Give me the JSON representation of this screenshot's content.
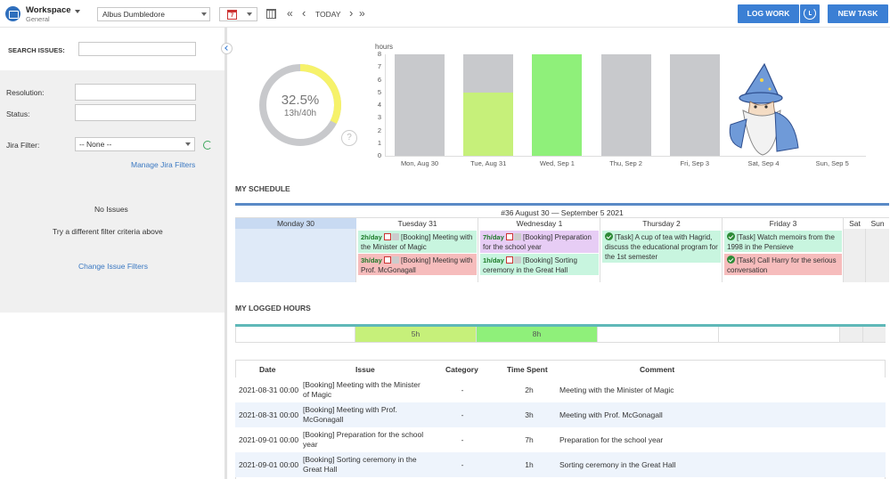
{
  "workspace": {
    "title": "Workspace",
    "subtitle": "General"
  },
  "user_select": {
    "value": "Albus Dumbledore"
  },
  "calendar": {
    "day_number": "7"
  },
  "nav": {
    "first": "«",
    "prev": "‹",
    "today": "TODAY",
    "next": "›",
    "last": "»"
  },
  "buttons": {
    "log_work": "LOG WORK",
    "new_task": "NEW TASK"
  },
  "sidebar": {
    "search_label": "SEARCH ISSUES:",
    "resolution_label": "Resolution:",
    "status_label": "Status:",
    "jira_filter_label": "Jira Filter:",
    "jira_filter_value": "-- None --",
    "manage_filters": "Manage Jira Filters",
    "no_issues": "No Issues",
    "try_different": "Try a different filter criteria above",
    "change_filters": "Change Issue Filters"
  },
  "donut": {
    "percent": "32.5%",
    "hours": "13h/40h",
    "fill_fraction": 0.325,
    "help": "?"
  },
  "chart_data": {
    "type": "bar",
    "ylabel": "hours",
    "ylim": [
      0,
      8
    ],
    "yticks": [
      "8",
      "7",
      "6",
      "5",
      "4",
      "3",
      "2",
      "1",
      "0"
    ],
    "categories": [
      "Mon, Aug 30",
      "Tue, Aug 31",
      "Wed, Sep 1",
      "Thu, Sep 2",
      "Fri, Sep 3",
      "Sat, Sep 4",
      "Sun, Sep 5"
    ],
    "capacity": [
      8,
      8,
      8,
      8,
      8,
      0,
      0
    ],
    "logged": [
      0,
      5,
      8,
      0,
      0,
      0,
      0
    ],
    "colors": {
      "capacity": "#c8c9cc",
      "logged": "#c6f07a",
      "full": "#8ff07a"
    }
  },
  "schedule": {
    "heading": "MY SCHEDULE",
    "week_title": "#36 August 30 — September 5 2021",
    "days": [
      "Monday 30",
      "Tuesday 31",
      "Wednesday 1",
      "Thursday 2",
      "Friday 3",
      "Sat",
      "Sun"
    ],
    "tuesday": [
      {
        "hours": "2h/day",
        "text": "[Booking] Meeting with the Minister of Magic"
      },
      {
        "hours": "3h/day",
        "text": "[Booking] Meeting with Prof. McGonagall"
      }
    ],
    "wednesday": [
      {
        "hours": "7h/day",
        "text": "[Booking] Preparation for the school year"
      },
      {
        "hours": "1h/day",
        "text": "[Booking] Sorting ceremony in the Great Hall"
      }
    ],
    "thursday": [
      {
        "text": "[Task] A cup of tea with Hagrid, discuss the educational program for the 1st semester"
      }
    ],
    "friday": [
      {
        "text": "[Task] Watch memoirs from the 1998 in the Pensieve"
      },
      {
        "text": "[Task] Call Harry for the serious conversation"
      }
    ]
  },
  "logged": {
    "heading": "MY LOGGED HOURS",
    "tuesday": "5h",
    "wednesday": "8h"
  },
  "table": {
    "headers": {
      "date": "Date",
      "issue": "Issue",
      "category": "Category",
      "time": "Time Spent",
      "comment": "Comment"
    },
    "rows": [
      {
        "date": "2021-08-31 00:00",
        "issue": "[Booking] Meeting with the Minister of Magic",
        "category": "-",
        "time": "2h",
        "comment": "Meeting with the Minister of Magic"
      },
      {
        "date": "2021-08-31 00:00",
        "issue": "[Booking] Meeting with Prof. McGonagall",
        "category": "-",
        "time": "3h",
        "comment": "Meeting with Prof. McGonagall"
      },
      {
        "date": "2021-09-01 00:00",
        "issue": "[Booking] Preparation for the school year",
        "category": "-",
        "time": "7h",
        "comment": "Preparation for the school year"
      },
      {
        "date": "2021-09-01 00:00",
        "issue": "[Booking] Sorting ceremony in the Great Hall",
        "category": "-",
        "time": "1h",
        "comment": "Sorting ceremony in the Great Hall"
      }
    ]
  },
  "colors": {
    "accent": "#3b7fd4",
    "booking_green": "#c8f5df",
    "booking_red": "#f6bcbc",
    "booking_purple": "#e7cdf5",
    "task_green": "#c8f5df",
    "task_red": "#f6bcbc"
  }
}
